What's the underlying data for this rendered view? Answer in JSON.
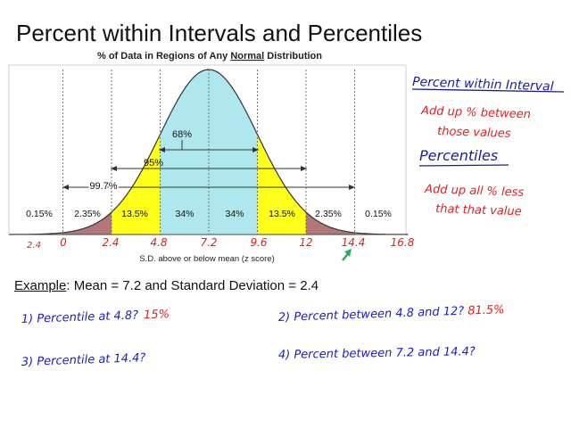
{
  "slide": {
    "title": "Percent within Intervals and Percentiles"
  },
  "figure": {
    "title_prefix": "% of Data in Regions of Any ",
    "title_emph": "Normal",
    "title_suffix": " Distribution",
    "intervals": [
      {
        "label": "68%"
      },
      {
        "label": "95%"
      },
      {
        "label": "99.7%"
      }
    ],
    "region_percents": [
      "0.15%",
      "2.35%",
      "13.5%",
      "34%",
      "34%",
      "13.5%",
      "2.35%",
      "0.15%"
    ],
    "axis_caption": "S.D. above or below mean (z score)",
    "tick_values": [
      "2.4",
      "0",
      "2.4",
      "4.8",
      "7.2",
      "9.6",
      "12",
      "14.4",
      "16.8"
    ],
    "colors": {
      "center": "#aee8ee",
      "middle": "#ffff1a",
      "outer": "#b27878",
      "far": "#c0c0c0",
      "handwriting_black": "#1a1aa0",
      "handwriting_red": "#e02020",
      "handwriting_blue": "#1a1ac8",
      "arrow": "#22b060"
    }
  },
  "notes": {
    "percent_heading": "Percent within Interval",
    "percent_body": [
      "Add up % between",
      "those values"
    ],
    "percentile_heading": "Percentiles",
    "percentile_body": [
      "Add up all % less",
      "that that value"
    ]
  },
  "example": {
    "label": "Example",
    "text": ":  Mean = 7.2 and Standard Deviation = 2.4"
  },
  "questions": [
    {
      "text": "1) Percentile at 4.8?",
      "answer": "15%"
    },
    {
      "text": "2) Percent between 4.8 and 12?",
      "answer": "81.5%"
    },
    {
      "text": "3) Percentile at 14.4?",
      "answer": ""
    },
    {
      "text": "4) Percent between 7.2 and 14.4?",
      "answer": ""
    }
  ]
}
